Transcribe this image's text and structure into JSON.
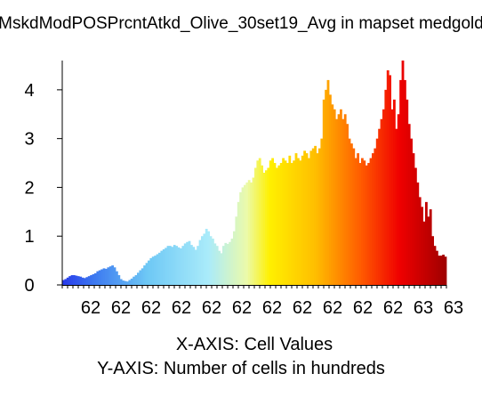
{
  "chart_data": {
    "type": "bar",
    "title": "MskdModPOSPrcntAtkd_Olive_30set19_Avg in mapset medgold",
    "xlabel": "X-AXIS: Cell Values",
    "ylabel": "Y-AXIS: Number of cells in hundreds",
    "x_tick_labels": [
      "62",
      "62",
      "62",
      "62",
      "62",
      "62",
      "62",
      "62",
      "62",
      "62",
      "62",
      "63",
      "63"
    ],
    "y_tick_labels": [
      "0",
      "1",
      "2",
      "3",
      "4"
    ],
    "y_ticks": [
      0,
      1,
      2,
      3,
      4
    ],
    "ylim": [
      0,
      4.6
    ],
    "grid": false,
    "values": [
      0.1,
      0.12,
      0.15,
      0.18,
      0.2,
      0.2,
      0.19,
      0.18,
      0.17,
      0.15,
      0.14,
      0.16,
      0.18,
      0.2,
      0.22,
      0.24,
      0.28,
      0.3,
      0.32,
      0.34,
      0.33,
      0.36,
      0.38,
      0.4,
      0.36,
      0.28,
      0.2,
      0.12,
      0.09,
      0.08,
      0.07,
      0.1,
      0.13,
      0.17,
      0.2,
      0.25,
      0.3,
      0.34,
      0.4,
      0.45,
      0.5,
      0.55,
      0.58,
      0.6,
      0.63,
      0.66,
      0.7,
      0.73,
      0.76,
      0.8,
      0.8,
      0.78,
      0.82,
      0.8,
      0.77,
      0.75,
      0.8,
      0.85,
      0.88,
      0.9,
      0.82,
      0.78,
      0.72,
      0.8,
      0.92,
      1.0,
      1.05,
      1.15,
      1.1,
      1.0,
      0.95,
      0.85,
      0.8,
      0.7,
      0.65,
      0.8,
      0.86,
      0.84,
      0.88,
      0.95,
      1.1,
      1.4,
      1.7,
      1.9,
      2.0,
      2.05,
      2.1,
      2.15,
      2.1,
      2.2,
      2.4,
      2.55,
      2.6,
      2.45,
      2.3,
      2.35,
      2.4,
      2.55,
      2.6,
      2.5,
      2.4,
      2.45,
      2.5,
      2.6,
      2.55,
      2.5,
      2.65,
      2.5,
      2.55,
      2.7,
      2.6,
      2.55,
      2.65,
      2.75,
      2.7,
      2.6,
      2.75,
      2.8,
      2.85,
      2.7,
      2.8,
      3.0,
      3.8,
      4.0,
      4.2,
      3.9,
      3.7,
      3.6,
      3.4,
      3.5,
      3.6,
      3.4,
      3.5,
      3.3,
      3.0,
      2.9,
      2.8,
      2.6,
      2.7,
      2.5,
      2.6,
      2.55,
      2.45,
      2.5,
      2.6,
      2.7,
      2.8,
      3.0,
      3.2,
      3.4,
      3.6,
      4.0,
      4.4,
      4.3,
      3.6,
      3.8,
      3.2,
      3.5,
      4.2,
      4.6,
      4.2,
      3.8,
      3.3,
      3.0,
      2.7,
      2.4,
      2.1,
      1.8,
      1.6,
      1.3,
      1.7,
      1.4,
      1.55,
      1.0,
      0.8,
      0.7,
      0.6,
      0.6,
      0.62,
      0.58
    ]
  }
}
